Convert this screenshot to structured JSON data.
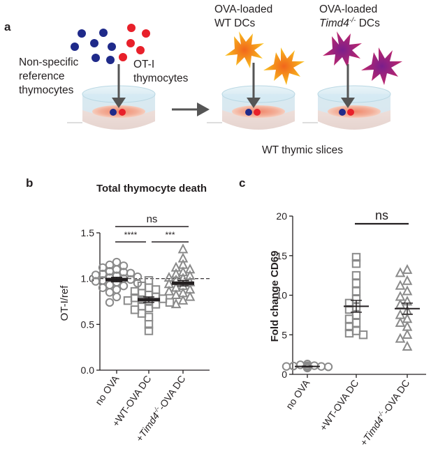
{
  "panel_a": {
    "letter": "a",
    "label_nonspecific": [
      "Non-specific",
      "reference",
      "thymocytes"
    ],
    "label_oti": [
      "OT-I",
      "thymocytes"
    ],
    "label_wt_dcs": [
      "OVA-loaded",
      "WT DCs"
    ],
    "label_timd4_dcs": [
      "OVA-loaded",
      "Timd4",
      "-/-",
      " DCs"
    ],
    "label_slices": "WT thymic slices",
    "colors": {
      "nonspecific_cell": "#1f2a8a",
      "oti_cell": "#e8202a",
      "wt_dc": "#f7b21a",
      "timd4_dc": "#9b1f7a",
      "well_top": "#d6ecf5",
      "slice": "#e8b4a0",
      "arrow": "#555555"
    }
  },
  "chart_data": [
    {
      "panel": "b",
      "type": "scatter",
      "title": "Total thymocyte death",
      "ylabel": "OT-I/ref",
      "ylim": [
        0.0,
        1.5
      ],
      "yticks": [
        "0.0",
        "0.5",
        "1.0",
        "1.5"
      ],
      "categories": [
        "no OVA",
        "+WT-OVA DC",
        "+Timd4-/- -OVA DC"
      ],
      "category_labels": [
        {
          "parts": [
            "no OVA"
          ]
        },
        {
          "parts": [
            "+WT-OVA DC"
          ]
        },
        {
          "parts": [
            "+",
            "Timd4",
            "-/-",
            "-OVA DC"
          ]
        }
      ],
      "markers": [
        "circle",
        "square",
        "triangle"
      ],
      "reference_line": 1.0,
      "series": [
        {
          "values": [
            1.18,
            1.15,
            1.14,
            1.12,
            1.1,
            1.08,
            1.07,
            1.06,
            1.05,
            1.04,
            1.03,
            1.02,
            1.01,
            1.0,
            0.99,
            0.98,
            0.97,
            0.96,
            0.95,
            0.93,
            0.92,
            0.9,
            0.88,
            0.85,
            0.8,
            0.74
          ],
          "mean": 0.99,
          "sem": 0.025
        },
        {
          "values": [
            0.98,
            0.92,
            0.9,
            0.88,
            0.86,
            0.84,
            0.82,
            0.8,
            0.79,
            0.78,
            0.77,
            0.76,
            0.75,
            0.74,
            0.72,
            0.7,
            0.68,
            0.66,
            0.62,
            0.58,
            0.5,
            0.43
          ],
          "mean": 0.77,
          "sem": 0.03
        },
        {
          "values": [
            1.32,
            1.22,
            1.15,
            1.12,
            1.1,
            1.07,
            1.05,
            1.03,
            1.01,
            1.0,
            0.98,
            0.96,
            0.94,
            0.92,
            0.9,
            0.88,
            0.86,
            0.84,
            0.82,
            0.8,
            0.76,
            0.72
          ],
          "mean": 0.95,
          "sem": 0.03
        }
      ],
      "significance": [
        {
          "from": 0,
          "to": 1,
          "label": "****"
        },
        {
          "from": 1,
          "to": 2,
          "label": "***"
        },
        {
          "from": 0,
          "to": 2,
          "label": "ns"
        }
      ],
      "panel_letter": "b"
    },
    {
      "panel": "c",
      "type": "scatter",
      "title": "",
      "ylabel": "Fold change CD69",
      "ylim": [
        0,
        20
      ],
      "yticks": [
        "0",
        "5",
        "10",
        "15",
        "20"
      ],
      "categories": [
        "no OVA",
        "+WT-OVA DC",
        "+Timd4-/- -OVA DC"
      ],
      "category_labels": [
        {
          "parts": [
            "no OVA"
          ]
        },
        {
          "parts": [
            "+WT-OVA DC"
          ]
        },
        {
          "parts": [
            "+",
            "Timd4",
            "-/-",
            "-OVA DC"
          ]
        }
      ],
      "markers": [
        "circle",
        "square",
        "triangle"
      ],
      "series": [
        {
          "values": [
            1.3,
            1.2,
            1.1,
            1.05,
            1.0,
            1.0,
            0.95,
            0.95,
            0.9,
            0.9,
            0.85,
            0.8,
            1.1,
            1.0
          ],
          "mean": 1.0,
          "sem": 0.05
        },
        {
          "values": [
            14.8,
            14.0,
            12.5,
            11.5,
            10.5,
            9.5,
            9.0,
            8.5,
            8.2,
            7.5,
            7.0,
            6.5,
            6.0,
            5.5,
            5.2,
            5.0
          ],
          "mean": 8.6,
          "sem": 0.75
        },
        {
          "values": [
            13.2,
            12.8,
            11.8,
            11.2,
            10.5,
            9.8,
            9.2,
            8.8,
            8.0,
            7.5,
            7.0,
            6.5,
            6.0,
            5.0,
            4.5,
            3.5
          ],
          "mean": 8.3,
          "sem": 0.7
        }
      ],
      "significance": [
        {
          "from": 1,
          "to": 2,
          "label": "ns"
        }
      ],
      "panel_letter": "c"
    }
  ]
}
